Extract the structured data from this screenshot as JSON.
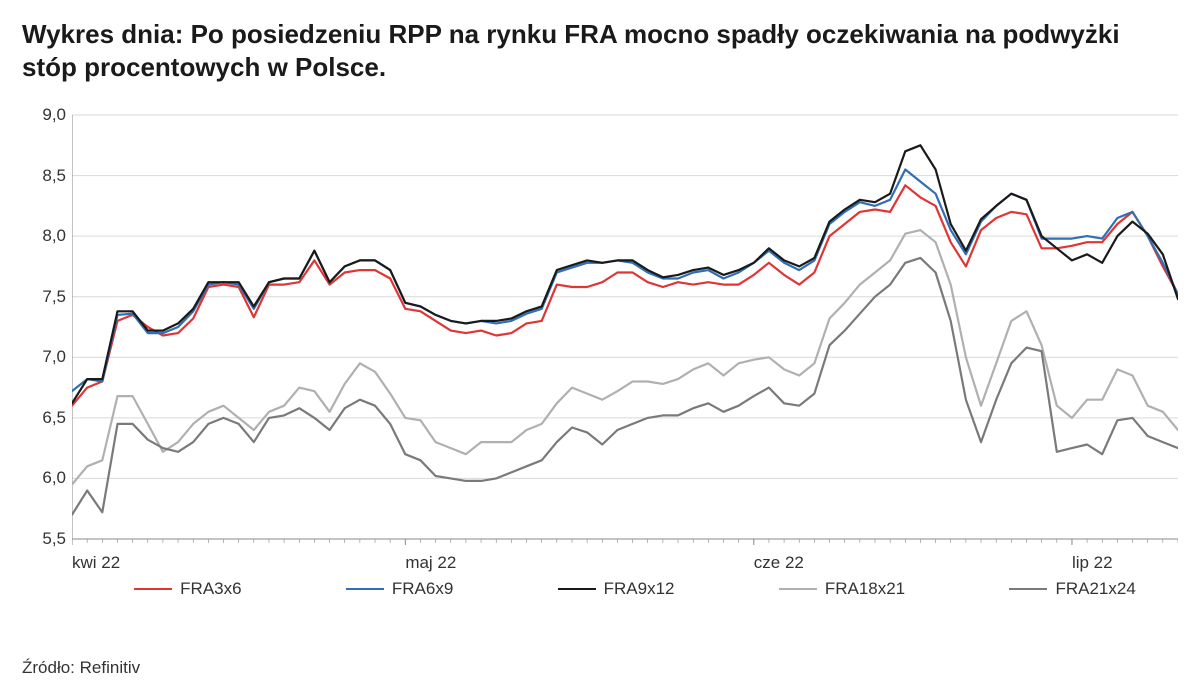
{
  "title": "Wykres dnia: Po posiedzeniu RPP na rynku FRA mocno spadły oczekiwania na podwyżki stóp procentowych w Polsce.",
  "source_label": "Źródło: Refinitiv",
  "chart": {
    "type": "line",
    "background_color": "#ffffff",
    "grid_color": "#d9d9d9",
    "axis_color": "#8a8a8a",
    "tick_color": "#8a8a8a",
    "label_color": "#333333",
    "title_fontsize": 26,
    "label_fontsize": 17,
    "line_width": 2.2,
    "ylim": [
      5.5,
      9.0
    ],
    "ytick_step": 0.5,
    "y_ticks": [
      "5,5",
      "6,0",
      "6,5",
      "7,0",
      "7,5",
      "8,0",
      "8,5",
      "9,0"
    ],
    "x_points": 74,
    "x_ticks": [
      {
        "pos": 0,
        "label": "kwi 22"
      },
      {
        "pos": 22,
        "label": "maj 22"
      },
      {
        "pos": 45,
        "label": "cze 22"
      },
      {
        "pos": 66,
        "label": "lip 22"
      }
    ],
    "series": [
      {
        "name": "FRA3x6",
        "color": "#e03535",
        "values": [
          6.6,
          6.75,
          6.8,
          7.3,
          7.35,
          7.25,
          7.18,
          7.2,
          7.32,
          7.58,
          7.6,
          7.58,
          7.33,
          7.6,
          7.6,
          7.62,
          7.8,
          7.6,
          7.7,
          7.72,
          7.72,
          7.65,
          7.4,
          7.38,
          7.3,
          7.22,
          7.2,
          7.22,
          7.18,
          7.2,
          7.28,
          7.3,
          7.6,
          7.58,
          7.58,
          7.62,
          7.7,
          7.7,
          7.62,
          7.58,
          7.62,
          7.6,
          7.62,
          7.6,
          7.6,
          7.68,
          7.78,
          7.68,
          7.6,
          7.7,
          8.0,
          8.1,
          8.2,
          8.22,
          8.2,
          8.42,
          8.32,
          8.25,
          7.95,
          7.75,
          8.05,
          8.15,
          8.2,
          8.18,
          7.9,
          7.9,
          7.92,
          7.95,
          7.95,
          8.1,
          8.2,
          8.0,
          7.75,
          7.52
        ]
      },
      {
        "name": "FRA6x9",
        "color": "#2f6fb3",
        "values": [
          6.72,
          6.82,
          6.8,
          7.35,
          7.36,
          7.2,
          7.2,
          7.25,
          7.38,
          7.6,
          7.62,
          7.6,
          7.4,
          7.62,
          7.65,
          7.65,
          7.88,
          7.62,
          7.75,
          7.8,
          7.8,
          7.72,
          7.45,
          7.42,
          7.35,
          7.3,
          7.28,
          7.3,
          7.28,
          7.3,
          7.36,
          7.4,
          7.7,
          7.74,
          7.78,
          7.78,
          7.8,
          7.78,
          7.7,
          7.65,
          7.65,
          7.7,
          7.72,
          7.65,
          7.7,
          7.78,
          7.88,
          7.78,
          7.72,
          7.8,
          8.1,
          8.2,
          8.28,
          8.25,
          8.3,
          8.55,
          8.45,
          8.35,
          8.05,
          7.85,
          8.12,
          8.25,
          8.35,
          8.3,
          7.98,
          7.98,
          7.98,
          8.0,
          7.98,
          8.15,
          8.2,
          8.0,
          7.78,
          7.52
        ]
      },
      {
        "name": "FRA9x12",
        "color": "#1a1a1a",
        "values": [
          6.62,
          6.82,
          6.82,
          7.38,
          7.38,
          7.22,
          7.22,
          7.28,
          7.4,
          7.62,
          7.62,
          7.62,
          7.42,
          7.62,
          7.65,
          7.65,
          7.88,
          7.62,
          7.75,
          7.8,
          7.8,
          7.72,
          7.45,
          7.42,
          7.35,
          7.3,
          7.28,
          7.3,
          7.3,
          7.32,
          7.38,
          7.42,
          7.72,
          7.76,
          7.8,
          7.78,
          7.8,
          7.8,
          7.72,
          7.66,
          7.68,
          7.72,
          7.74,
          7.68,
          7.72,
          7.78,
          7.9,
          7.8,
          7.75,
          7.82,
          8.12,
          8.22,
          8.3,
          8.28,
          8.35,
          8.7,
          8.75,
          8.55,
          8.1,
          7.88,
          8.14,
          8.25,
          8.35,
          8.3,
          8.0,
          7.9,
          7.8,
          7.85,
          7.78,
          8.0,
          8.12,
          8.02,
          7.85,
          7.48
        ]
      },
      {
        "name": "FRA18x21",
        "color": "#b0b0b0",
        "values": [
          5.95,
          6.1,
          6.15,
          6.68,
          6.68,
          6.45,
          6.22,
          6.3,
          6.45,
          6.55,
          6.6,
          6.5,
          6.4,
          6.55,
          6.6,
          6.75,
          6.72,
          6.55,
          6.78,
          6.95,
          6.88,
          6.7,
          6.5,
          6.48,
          6.3,
          6.25,
          6.2,
          6.3,
          6.3,
          6.3,
          6.4,
          6.45,
          6.62,
          6.75,
          6.7,
          6.65,
          6.72,
          6.8,
          6.8,
          6.78,
          6.82,
          6.9,
          6.95,
          6.85,
          6.95,
          6.98,
          7.0,
          6.9,
          6.85,
          6.95,
          7.32,
          7.45,
          7.6,
          7.7,
          7.8,
          8.02,
          8.05,
          7.95,
          7.6,
          7.0,
          6.6,
          6.95,
          7.3,
          7.38,
          7.1,
          6.6,
          6.5,
          6.65,
          6.65,
          6.9,
          6.85,
          6.6,
          6.55,
          6.4
        ]
      },
      {
        "name": "FRA21x24",
        "color": "#7a7a7a",
        "values": [
          5.7,
          5.9,
          5.72,
          6.45,
          6.45,
          6.32,
          6.25,
          6.22,
          6.3,
          6.45,
          6.5,
          6.45,
          6.3,
          6.5,
          6.52,
          6.58,
          6.5,
          6.4,
          6.58,
          6.65,
          6.6,
          6.45,
          6.2,
          6.15,
          6.02,
          6.0,
          5.98,
          5.98,
          6.0,
          6.05,
          6.1,
          6.15,
          6.3,
          6.42,
          6.38,
          6.28,
          6.4,
          6.45,
          6.5,
          6.52,
          6.52,
          6.58,
          6.62,
          6.55,
          6.6,
          6.68,
          6.75,
          6.62,
          6.6,
          6.7,
          7.1,
          7.22,
          7.36,
          7.5,
          7.6,
          7.78,
          7.82,
          7.7,
          7.3,
          6.65,
          6.3,
          6.65,
          6.95,
          7.08,
          7.05,
          6.22,
          6.25,
          6.28,
          6.2,
          6.48,
          6.5,
          6.35,
          6.3,
          6.25
        ]
      }
    ],
    "legend_position": "bottom"
  }
}
